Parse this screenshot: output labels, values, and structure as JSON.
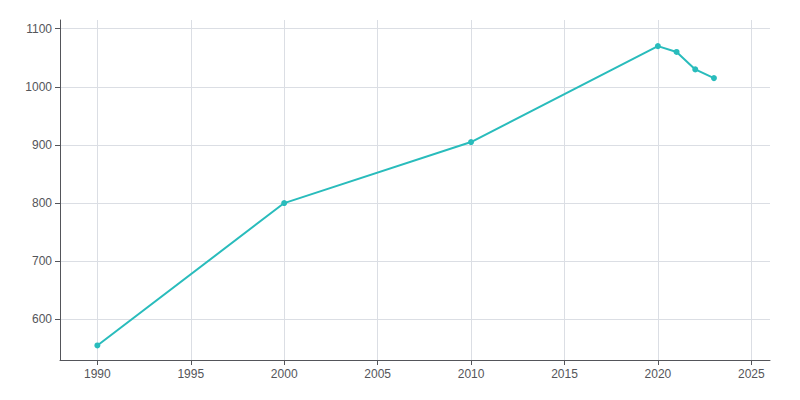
{
  "chart_data": {
    "type": "line",
    "x": [
      1990,
      2000,
      2010,
      2020,
      2021,
      2022,
      2023
    ],
    "values": [
      555,
      800,
      905,
      1070,
      1060,
      1030,
      1015
    ],
    "color": "#29bcbc",
    "marker": "circle",
    "xlim": [
      1988,
      2026
    ],
    "ylim": [
      530,
      1115
    ],
    "xticks": [
      1990,
      1995,
      2000,
      2005,
      2010,
      2015,
      2020,
      2025
    ],
    "yticks": [
      600,
      700,
      800,
      900,
      1000,
      1100
    ],
    "grid": true
  }
}
